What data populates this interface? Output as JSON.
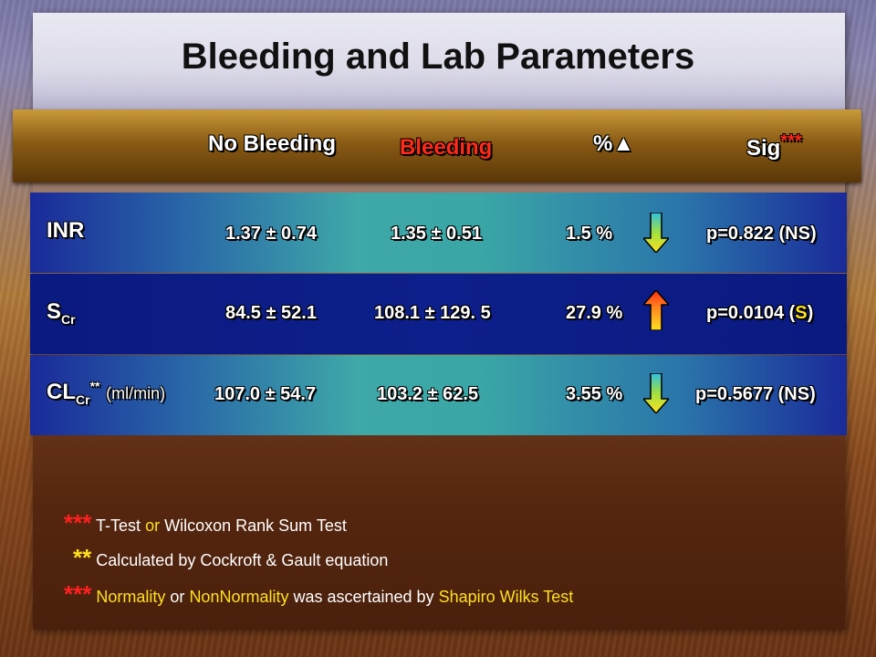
{
  "title": "Bleeding and Lab Parameters",
  "header": {
    "no_bleeding": "No Bleeding",
    "bleeding": "Bleeding",
    "pct_change": "%▲",
    "sig": "Sig",
    "sig_marker": "***"
  },
  "rows": [
    {
      "label": "INR",
      "no_bleeding": "1.37 ± 0.74",
      "bleeding": "1.35 ± 0.51",
      "pct": "1.5 %",
      "direction": "down",
      "p_value": "p=0.822 (NS)"
    },
    {
      "label_main": "S",
      "label_sub": "Cr",
      "no_bleeding": "84.5 ± 52.1",
      "bleeding": "108.1 ± 129. 5",
      "pct": "27.9 %",
      "direction": "up",
      "p_prefix": "p=0.0104 (",
      "p_sig": "S",
      "p_suffix": ")"
    },
    {
      "label_main": "CL",
      "label_sub": "Cr",
      "label_sup": "**",
      "label_unit": "(ml/min)",
      "no_bleeding": "107.0 ± 54.7",
      "bleeding": "103.2 ± 62.5",
      "pct": "3.55 %",
      "direction": "down",
      "p_value": "p=0.5677 (NS)"
    }
  ],
  "notes": {
    "n1_marker": "***",
    "n1_a": "T-Test",
    "n1_or": "or",
    "n1_b": "Wilcoxon Rank Sum Test",
    "n2_marker": "**",
    "n2_text": "Calculated by Cockroft & Gault equation",
    "n3_marker": "***",
    "n3_a": "Normality",
    "n3_or": "or",
    "n3_b": "NonNormality",
    "n3_c": "was ascertained by",
    "n3_d": "Shapiro Wilks Test"
  },
  "colors": {
    "down_arrow": "#3fa020",
    "up_arrow": "#e03010",
    "significant": "#ffe020"
  }
}
